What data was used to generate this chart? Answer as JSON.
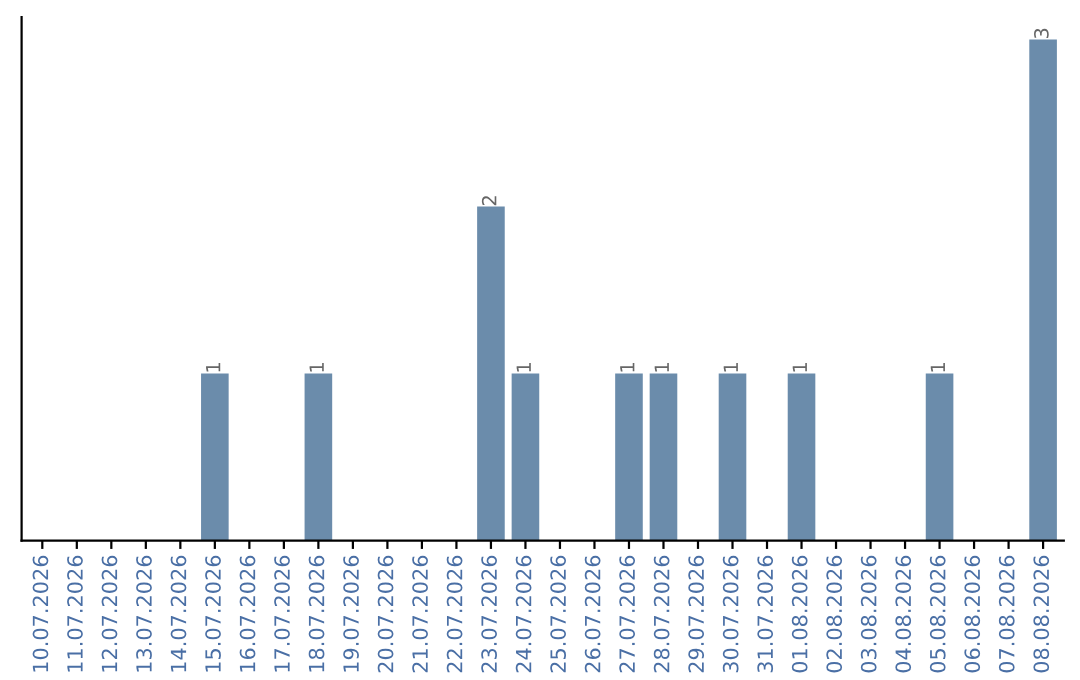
{
  "chart_data": {
    "type": "bar",
    "categories": [
      "10.07.2026",
      "11.07.2026",
      "12.07.2026",
      "13.07.2026",
      "14.07.2026",
      "15.07.2026",
      "16.07.2026",
      "17.07.2026",
      "18.07.2026",
      "19.07.2026",
      "20.07.2026",
      "21.07.2026",
      "22.07.2026",
      "23.07.2026",
      "24.07.2026",
      "25.07.2026",
      "26.07.2026",
      "27.07.2026",
      "28.07.2026",
      "29.07.2026",
      "30.07.2026",
      "31.07.2026",
      "01.08.2026",
      "02.08.2026",
      "03.08.2026",
      "04.08.2026",
      "05.08.2026",
      "06.08.2026",
      "07.08.2026",
      "08.08.2026"
    ],
    "values": [
      0,
      0,
      0,
      0,
      0,
      1,
      0,
      0,
      1,
      0,
      0,
      0,
      0,
      2,
      1,
      0,
      0,
      1,
      1,
      0,
      1,
      0,
      1,
      0,
      0,
      0,
      1,
      0,
      0,
      3
    ],
    "value_labels": [
      null,
      null,
      null,
      null,
      null,
      "1",
      null,
      null,
      "1",
      null,
      null,
      null,
      null,
      "2",
      "1",
      null,
      null,
      "1",
      "1",
      null,
      "1",
      null,
      "1",
      null,
      null,
      null,
      "1",
      null,
      null,
      "3"
    ],
    "color": "#6b8cab",
    "tick_labels": "x",
    "grid": false
  }
}
